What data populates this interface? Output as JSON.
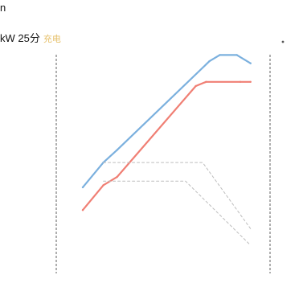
{
  "header": {
    "title_line1": "n",
    "title_line2": "kW 25分",
    "title_accent": "充电"
  },
  "colors": {
    "series_blue": "#7bb0de",
    "series_red": "#f07f74",
    "guide": "#bdbdbd",
    "axis": "#7a7a7a",
    "accent": "#e6c06a"
  },
  "chart_data": {
    "type": "line",
    "grid": false,
    "xlim": [
      0,
      100
    ],
    "ylim": [
      0,
      100
    ],
    "series": [
      {
        "x": [
          0,
          12,
          20,
          74,
          80,
          90,
          98
        ],
        "y": [
          30,
          42,
          48,
          91,
          94,
          94,
          90
        ]
      },
      {
        "x": [
          0,
          12,
          20,
          66,
          72,
          92,
          98
        ],
        "y": [
          19,
          31,
          35,
          79,
          81,
          81,
          81
        ]
      },
      {
        "x": [
          12,
          70,
          98
        ],
        "y": [
          42,
          42,
          10
        ]
      },
      {
        "x": [
          12,
          60,
          98
        ],
        "y": [
          33,
          33,
          2
        ]
      }
    ]
  }
}
